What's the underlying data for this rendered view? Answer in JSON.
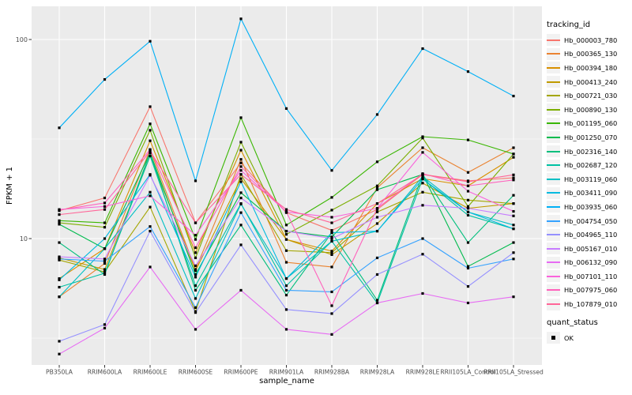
{
  "chart_data": {
    "type": "line",
    "xlabel": "sample_name",
    "ylabel": "FPKM + 1",
    "y_scale": "log10",
    "y_ticks": [
      100,
      10
    ],
    "y_tick_labels": [
      "100",
      "10"
    ],
    "y_minor_ticks": [
      31.623,
      3.1623
    ],
    "ylim": [
      2.3,
      148
    ],
    "grid": true,
    "legend_position": "right",
    "point_shape": "small-black-square",
    "categories": [
      "PB350LA",
      "RRIM600LA",
      "RRIM600LE",
      "RRIM600SE",
      "RRIM600PE",
      "RRIM901LA",
      "RRIM928BA",
      "RRIM928LA",
      "RRIM928LE",
      "RRII105LA_Control",
      "RRII105LA_Stressed"
    ],
    "series": [
      {
        "name": "Hb_000003_780",
        "color": "#F8766D",
        "values": [
          13.8,
          16.0,
          46,
          12.0,
          24,
          13.5,
          11.0,
          14.0,
          21.0,
          19.5,
          20.2
        ]
      },
      {
        "name": "Hb_000365_130",
        "color": "#EA8331",
        "values": [
          5.1,
          7.5,
          28,
          7.0,
          25,
          7.6,
          7.2,
          18.0,
          28.6,
          21.5,
          28.6
        ]
      },
      {
        "name": "Hb_000394_180",
        "color": "#D89000",
        "values": [
          6.3,
          8.9,
          31,
          8.5,
          27.8,
          9.9,
          8.65,
          15.0,
          20.0,
          18.4,
          25.6
        ]
      },
      {
        "name": "Hb_000413_240",
        "color": "#C09B00",
        "values": [
          8.0,
          7.0,
          26,
          6.9,
          20,
          9.9,
          8.3,
          11.9,
          19.0,
          14.2,
          15.0
        ]
      },
      {
        "name": "Hb_000721_030",
        "color": "#A3A500",
        "values": [
          7.8,
          6.8,
          14.4,
          4.3,
          21,
          8.7,
          8.5,
          13.6,
          17.1,
          15.6,
          15.0
        ]
      },
      {
        "name": "Hb_000890_130",
        "color": "#7CAE00",
        "values": [
          12.0,
          11.4,
          35,
          8.0,
          30.5,
          10.5,
          13.9,
          18.4,
          32.0,
          14.5,
          26.6
        ]
      },
      {
        "name": "Hb_001195_060",
        "color": "#39B600",
        "values": [
          12.3,
          12.0,
          37.7,
          9.9,
          40.5,
          11.7,
          16.1,
          24.3,
          32.5,
          31.3,
          26.6
        ]
      },
      {
        "name": "Hb_001250_070",
        "color": "#00BB4E",
        "values": [
          11.8,
          8.9,
          27,
          6.6,
          17,
          10.9,
          10.2,
          17.6,
          21.0,
          7.25,
          9.55
        ]
      },
      {
        "name": "Hb_002316_140",
        "color": "#00BF7D",
        "values": [
          9.55,
          6.6,
          27,
          5.5,
          11.7,
          5.2,
          10.7,
          4.9,
          21.0,
          9.55,
          16.5
        ]
      },
      {
        "name": "Hb_002687_120",
        "color": "#00C1A3",
        "values": [
          5.7,
          6.7,
          26,
          5.8,
          15,
          5.8,
          9.7,
          4.75,
          20.0,
          13.1,
          11.2
        ]
      },
      {
        "name": "Hb_003119_060",
        "color": "#00BFC4",
        "values": [
          5.1,
          8.9,
          17.1,
          5.0,
          14.9,
          6.3,
          9.7,
          10.9,
          20.5,
          13.6,
          11.7
        ]
      },
      {
        "name": "Hb_003411_090",
        "color": "#00BAE0",
        "values": [
          6.2,
          10.0,
          21,
          6.4,
          19.3,
          6.3,
          10.7,
          10.9,
          19.9,
          13.6,
          11.2
        ]
      },
      {
        "name": "Hb_003935_060",
        "color": "#00B0F6",
        "values": [
          36,
          63,
          98,
          19.5,
          127,
          45,
          22,
          42,
          90,
          69,
          52
        ]
      },
      {
        "name": "Hb_004754_050",
        "color": "#35A2FF",
        "values": [
          7.9,
          7.7,
          11.5,
          4.5,
          13.5,
          5.5,
          5.4,
          8.0,
          10.0,
          7.1,
          7.9
        ]
      },
      {
        "name": "Hb_004965_110",
        "color": "#9590FF",
        "values": [
          3.05,
          3.7,
          10.9,
          4.25,
          9.3,
          4.4,
          4.2,
          6.6,
          8.35,
          5.75,
          8.5
        ]
      },
      {
        "name": "Hb_005167_010",
        "color": "#C77CFF",
        "values": [
          8.1,
          7.9,
          20.8,
          7.3,
          16,
          10.9,
          10.0,
          12.8,
          14.7,
          14.2,
          13.0
        ]
      },
      {
        "name": "Hb_006132_090",
        "color": "#E76BF3",
        "values": [
          2.63,
          3.55,
          7.2,
          3.5,
          5.5,
          3.5,
          3.3,
          4.75,
          5.3,
          4.75,
          5.1
        ]
      },
      {
        "name": "Hb_007101_110",
        "color": "#FA62DB",
        "values": [
          14.0,
          14.5,
          16.4,
          10.4,
          22,
          13.6,
          12.8,
          14.2,
          27.1,
          17.3,
          13.7
        ]
      },
      {
        "name": "Hb_007975_060",
        "color": "#FF62BC",
        "values": [
          13.9,
          15.1,
          28,
          9.0,
          23,
          13.6,
          4.6,
          14.2,
          21.2,
          18.4,
          19.7
        ]
      },
      {
        "name": "Hb_107879_010",
        "color": "#FF6598",
        "values": [
          13.2,
          14.0,
          27.5,
          12.0,
          21,
          14.0,
          12.0,
          15.0,
          21.0,
          19.3,
          20.9
        ]
      }
    ]
  },
  "legend": {
    "tracking_title": "tracking_id",
    "quant_title": "quant_status",
    "quant_items": [
      {
        "label": "OK"
      }
    ]
  },
  "colors": {
    "panel_bg": "#EBEBEB",
    "grid": "#FFFFFF",
    "axis_text": "#4D4D4D",
    "tick_mark": "#333333",
    "point": "#000000",
    "legend_key_bg": "#F2F2F2"
  }
}
